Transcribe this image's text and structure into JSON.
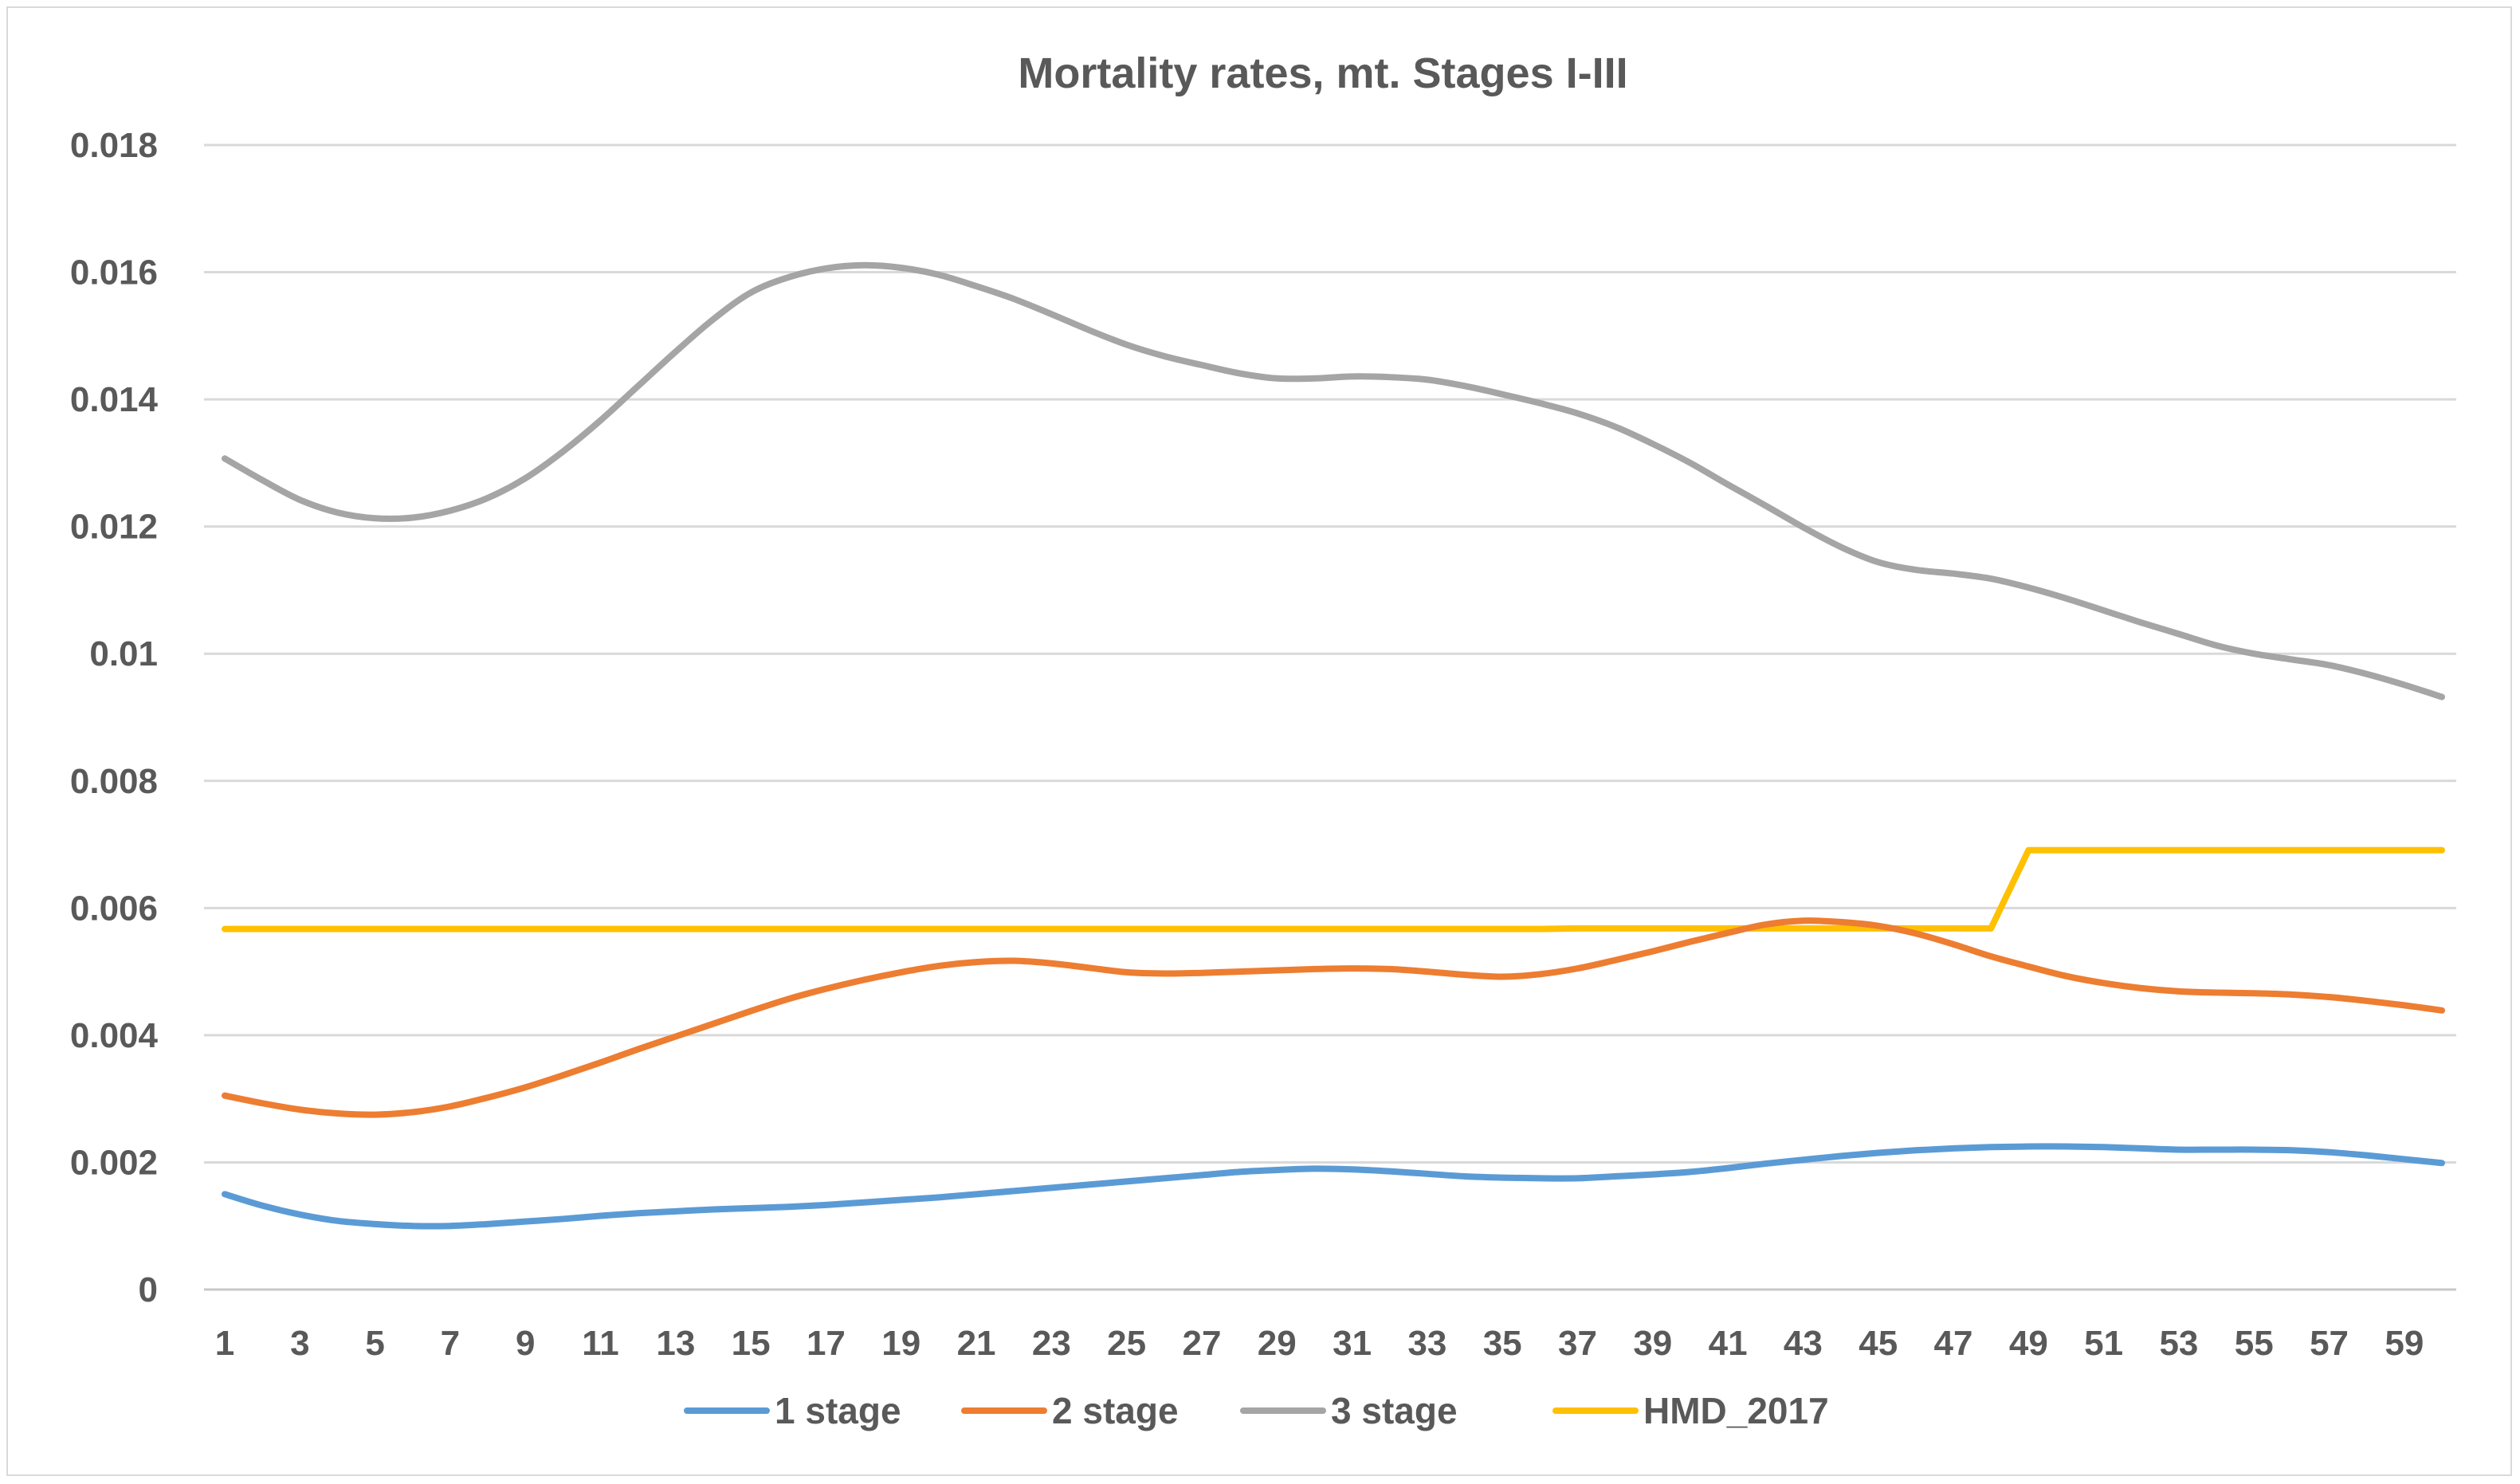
{
  "chart_data": {
    "type": "line",
    "title": "Mortality rates, mt. Stages I-III",
    "xlabel": "",
    "ylabel": "",
    "ylim": [
      0,
      0.018
    ],
    "yticks": [
      "0",
      "0.002",
      "0.004",
      "0.006",
      "0.008",
      "0.01",
      "0.012",
      "0.014",
      "0.016",
      "0.018"
    ],
    "ytick_values": [
      0,
      0.002,
      0.004,
      0.006,
      0.008,
      0.01,
      0.012,
      0.014,
      0.016,
      0.018
    ],
    "xrange": [
      1,
      60
    ],
    "xticks": [
      1,
      3,
      5,
      7,
      9,
      11,
      13,
      15,
      17,
      19,
      21,
      23,
      25,
      27,
      29,
      31,
      33,
      35,
      37,
      39,
      41,
      43,
      45,
      47,
      49,
      51,
      53,
      55,
      57,
      59
    ],
    "grid": "horizontal",
    "legend_position": "bottom",
    "series": [
      {
        "name": "1 stage",
        "color": "#5b9bd5",
        "values": [
          0.0015,
          0.00132,
          0.00118,
          0.00108,
          0.00103,
          0.001,
          0.001,
          0.00103,
          0.00107,
          0.00111,
          0.00116,
          0.0012,
          0.00123,
          0.00126,
          0.00128,
          0.0013,
          0.00133,
          0.00137,
          0.00141,
          0.00145,
          0.0015,
          0.00155,
          0.0016,
          0.00165,
          0.0017,
          0.00175,
          0.0018,
          0.00185,
          0.00188,
          0.0019,
          0.00189,
          0.00186,
          0.00182,
          0.00178,
          0.00176,
          0.00175,
          0.00175,
          0.00178,
          0.00181,
          0.00185,
          0.00191,
          0.00198,
          0.00204,
          0.0021,
          0.00215,
          0.00219,
          0.00222,
          0.00224,
          0.00225,
          0.00225,
          0.00224,
          0.00222,
          0.0022,
          0.0022,
          0.0022,
          0.00219,
          0.00216,
          0.00211,
          0.00205,
          0.00199
        ]
      },
      {
        "name": "2 stage",
        "color": "#ed7d31",
        "values": [
          0.00305,
          0.00293,
          0.00283,
          0.00277,
          0.00275,
          0.00279,
          0.00288,
          0.00302,
          0.00318,
          0.00337,
          0.00357,
          0.00378,
          0.00398,
          0.00418,
          0.00438,
          0.00457,
          0.00473,
          0.00487,
          0.00499,
          0.00509,
          0.00515,
          0.00517,
          0.00513,
          0.00506,
          0.00499,
          0.00497,
          0.00498,
          0.005,
          0.00502,
          0.00504,
          0.00505,
          0.00504,
          0.005,
          0.00495,
          0.00492,
          0.00496,
          0.00505,
          0.00518,
          0.00532,
          0.00547,
          0.00561,
          0.00574,
          0.0058,
          0.00578,
          0.00572,
          0.0056,
          0.00543,
          0.00524,
          0.00508,
          0.00493,
          0.00482,
          0.00474,
          0.00469,
          0.00467,
          0.00466,
          0.00464,
          0.0046,
          0.00454,
          0.00447,
          0.00439
        ]
      },
      {
        "name": "3 stage",
        "color": "#a5a5a5",
        "values": [
          0.01307,
          0.01273,
          0.01242,
          0.01222,
          0.01213,
          0.01214,
          0.01225,
          0.01245,
          0.01276,
          0.01318,
          0.01367,
          0.01421,
          0.01475,
          0.01526,
          0.01568,
          0.01592,
          0.01606,
          0.01611,
          0.01607,
          0.01596,
          0.01578,
          0.01558,
          0.01534,
          0.01509,
          0.01486,
          0.01468,
          0.01454,
          0.01441,
          0.01433,
          0.01433,
          0.01436,
          0.01435,
          0.01431,
          0.01421,
          0.01408,
          0.01394,
          0.01378,
          0.01357,
          0.0133,
          0.013,
          0.01266,
          0.01233,
          0.01199,
          0.01168,
          0.01144,
          0.01132,
          0.01126,
          0.01118,
          0.01104,
          0.01087,
          0.01068,
          0.01049,
          0.01031,
          0.01013,
          0.01,
          0.00991,
          0.00982,
          0.00968,
          0.00951,
          0.00932
        ]
      },
      {
        "name": "HMD_2017",
        "color": "#ffc000",
        "values": [
          0.00567,
          0.00567,
          0.00567,
          0.00567,
          0.00567,
          0.00567,
          0.00567,
          0.00567,
          0.00567,
          0.00567,
          0.00567,
          0.00567,
          0.00567,
          0.00567,
          0.00567,
          0.00567,
          0.00567,
          0.00567,
          0.00567,
          0.00567,
          0.00567,
          0.00567,
          0.00567,
          0.00567,
          0.00567,
          0.00567,
          0.00567,
          0.00567,
          0.00567,
          0.00567,
          0.00567,
          0.00567,
          0.00567,
          0.00567,
          0.00567,
          0.00567,
          0.00568,
          0.00568,
          0.00568,
          0.00568,
          0.00568,
          0.00568,
          0.00568,
          0.00568,
          0.00568,
          0.00568,
          0.00568,
          0.00568,
          0.00691,
          0.00691,
          0.00691,
          0.00691,
          0.00691,
          0.00691,
          0.00691,
          0.00691,
          0.00691,
          0.00691,
          0.00691,
          0.00691
        ]
      }
    ]
  }
}
